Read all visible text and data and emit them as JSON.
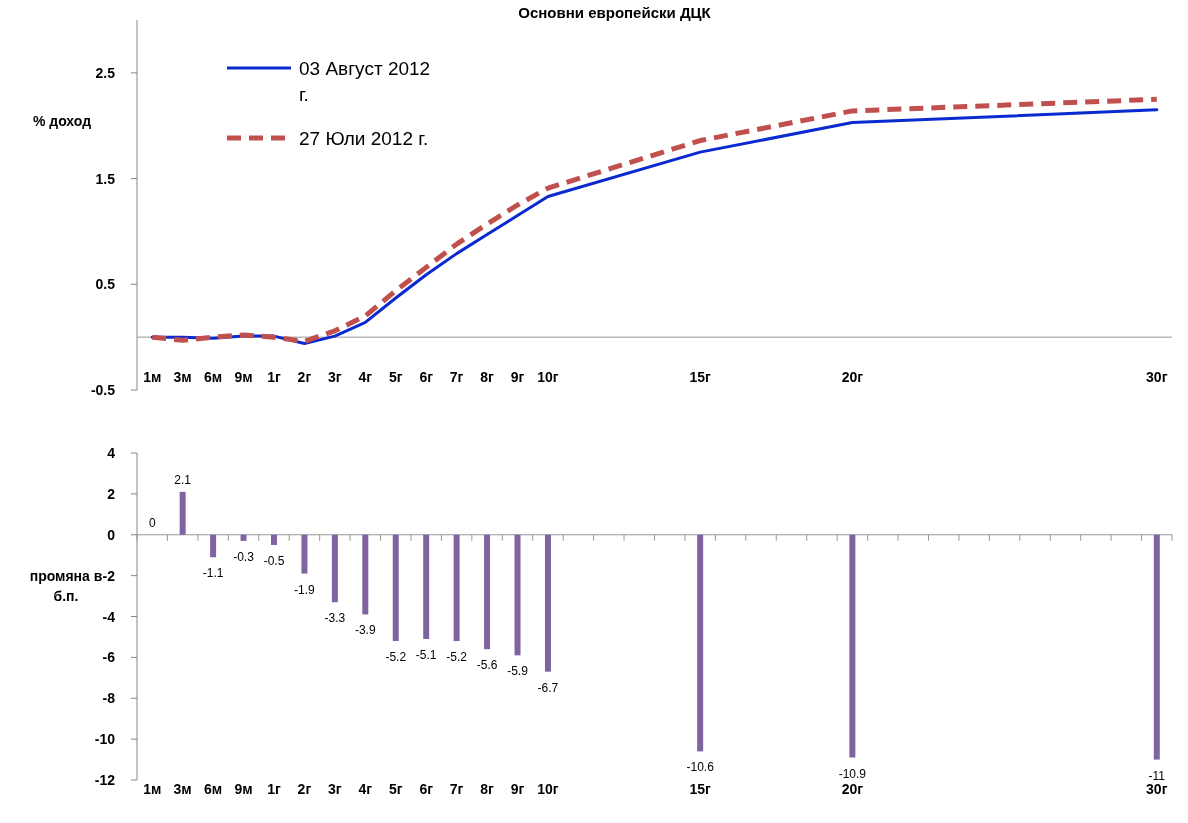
{
  "chart_data": [
    {
      "type": "line",
      "title": "Основни европейски ДЦК",
      "ylabel": "% доход",
      "categories": [
        "1м",
        "3м",
        "6м",
        "9м",
        "1г",
        "2г",
        "3г",
        "4г",
        "5г",
        "6г",
        "7г",
        "8г",
        "9г",
        "10г",
        null,
        null,
        null,
        null,
        "15г",
        null,
        null,
        null,
        null,
        "20г",
        null,
        null,
        null,
        null,
        null,
        null,
        null,
        null,
        null,
        "30г"
      ],
      "series": [
        {
          "name": "03 Август 2012 г.",
          "color": "#0a2ad0",
          "line_style": "solid",
          "values": [
            0.0,
            0.0,
            -0.01,
            0.01,
            0.01,
            -0.06,
            0.01,
            0.14,
            0.37,
            0.59,
            0.79,
            0.97,
            1.15,
            1.33,
            null,
            null,
            null,
            null,
            1.75,
            null,
            null,
            null,
            null,
            2.03,
            null,
            null,
            null,
            null,
            null,
            null,
            null,
            null,
            null,
            2.15
          ]
        },
        {
          "name": "27 Юли 2012 г.",
          "color": "#c0504d",
          "line_style": "dashed",
          "values": [
            0.0,
            -0.03,
            0.0,
            0.02,
            0.0,
            -0.04,
            0.06,
            0.2,
            0.44,
            0.66,
            0.88,
            1.07,
            1.25,
            1.41,
            null,
            null,
            null,
            null,
            1.86,
            null,
            null,
            null,
            null,
            2.14,
            null,
            null,
            null,
            null,
            null,
            null,
            null,
            null,
            null,
            2.25
          ]
        }
      ],
      "ylim": [
        -0.5,
        3
      ],
      "yticks": [
        -0.5,
        0.5,
        1.5,
        2.5
      ],
      "legend": "top left"
    },
    {
      "type": "bar",
      "ylabel": "промяна в б.п.",
      "categories": [
        "1м",
        "3м",
        "6м",
        "9м",
        "1г",
        "2г",
        "3г",
        "4г",
        "5г",
        "6г",
        "7г",
        "8г",
        "9г",
        "10г",
        null,
        null,
        null,
        null,
        "15г",
        null,
        null,
        null,
        null,
        "20г",
        null,
        null,
        null,
        null,
        null,
        null,
        null,
        null,
        null,
        "30г"
      ],
      "values": [
        0,
        2.1,
        -1.1,
        -0.3,
        -0.5,
        -1.9,
        -3.3,
        -3.9,
        -5.2,
        -5.1,
        -5.2,
        -5.6,
        -5.9,
        -6.7,
        null,
        null,
        null,
        null,
        -10.6,
        null,
        null,
        null,
        null,
        -10.9,
        null,
        null,
        null,
        null,
        null,
        null,
        null,
        null,
        null,
        -11
      ],
      "color": "#8064a2",
      "ylim": [
        -12,
        4
      ],
      "yticks": [
        -12,
        -10,
        -8,
        -6,
        -4,
        -2,
        0,
        2,
        4
      ],
      "data_labels": true
    }
  ]
}
